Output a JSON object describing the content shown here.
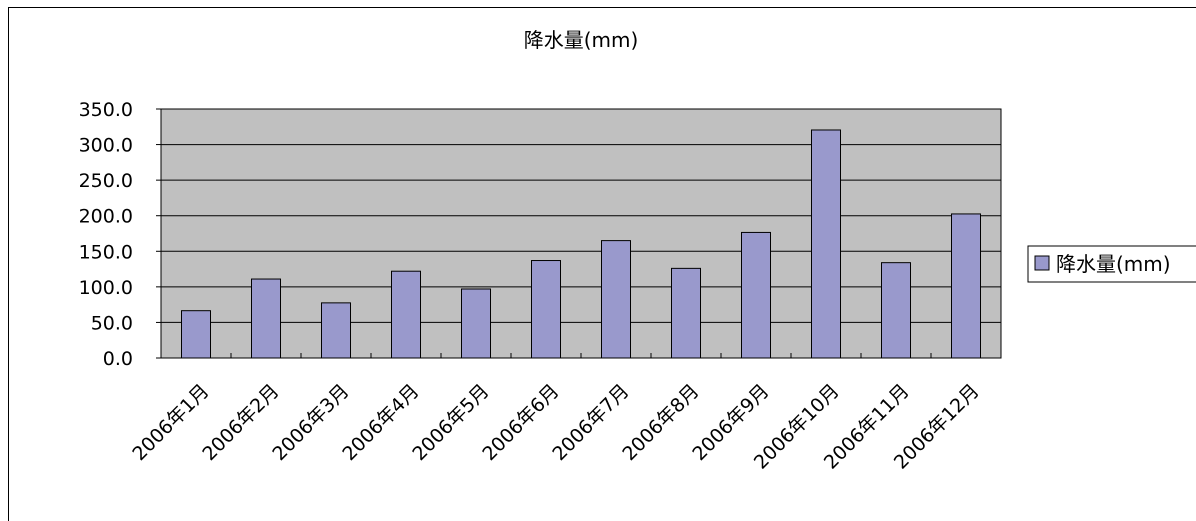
{
  "chart_data": {
    "type": "bar",
    "title": "降水量(mm)",
    "categories": [
      "2006年1月",
      "2006年2月",
      "2006年3月",
      "2006年4月",
      "2006年5月",
      "2006年6月",
      "2006年7月",
      "2006年8月",
      "2006年9月",
      "2006年10月",
      "2006年11月",
      "2006年12月"
    ],
    "series": [
      {
        "name": "降水量(mm)",
        "values": [
          66.5,
          111.0,
          77.5,
          122.0,
          97.0,
          137.0,
          165.0,
          126.0,
          176.5,
          320.5,
          134.0,
          202.5
        ]
      }
    ],
    "ylim": [
      0,
      350
    ],
    "yticks": [
      "0.0",
      "50.0",
      "100.0",
      "150.0",
      "200.0",
      "250.0",
      "300.0",
      "350.0"
    ],
    "xlabel": "",
    "ylabel": "",
    "grid": true,
    "legend": "right",
    "colors": {
      "bar_fill": "#9999cc",
      "bar_stroke": "#000000",
      "plot_bg": "#c0c0c0",
      "gridline": "#000000"
    }
  }
}
